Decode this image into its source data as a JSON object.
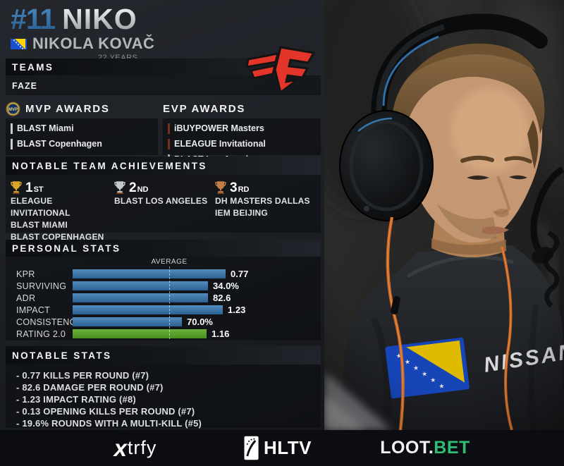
{
  "header": {
    "rank": "#11",
    "nickname": "NIKO",
    "realname": "NIKOLA KOVAČ",
    "age": "22 YEARS",
    "flag": "bosnia-flag"
  },
  "teams": {
    "title": "TEAMS",
    "team": "FAZE",
    "logo": "faze-logo"
  },
  "mvp_awards": {
    "title": "MVP AWARDS",
    "medal_text": "MVP",
    "items": [
      {
        "label": "BLAST Miami",
        "accent": "#c9ccd0"
      },
      {
        "label": "BLAST Copenhagen",
        "accent": "#c9ccd0"
      }
    ]
  },
  "evp_awards": {
    "title": "EVP AWARDS",
    "items": [
      {
        "label": "iBUYPOWER Masters",
        "accent": "#7d2d1d"
      },
      {
        "label": "ELEAGUE Invitational",
        "accent": "#7d2d1d"
      },
      {
        "label": "BLAST Los Angeles",
        "accent": "#a8adb2"
      }
    ]
  },
  "achievements": {
    "title": "NOTABLE TEAM ACHIEVEMENTS",
    "places": [
      {
        "place": "1",
        "suffix": "ST",
        "trophy_color": "#d9a62a",
        "events": [
          "ELEAGUE INVITATIONAL",
          "BLAST MIAMI",
          "BLAST COPENHAGEN"
        ]
      },
      {
        "place": "2",
        "suffix": "ND",
        "trophy_color": "#c3c8cd",
        "events": [
          "BLAST LOS ANGELES"
        ]
      },
      {
        "place": "3",
        "suffix": "RD",
        "trophy_color": "#c57d48",
        "events": [
          "DH MASTERS DALLAS",
          "IEM BEIJING"
        ]
      }
    ]
  },
  "chart_data": {
    "type": "bar",
    "orientation": "horizontal",
    "title": "PERSONAL STATS",
    "average_label": "AVERAGE",
    "average_frac": 0.489,
    "categories": [
      "KPR",
      "SURVIVING",
      "ADR",
      "IMPACT",
      "CONSISTENCY",
      "RATING 2.0"
    ],
    "values": [
      "0.77",
      "34.0%",
      "82.6",
      "1.23",
      "70.0%",
      "1.16"
    ],
    "values_numeric": [
      0.77,
      34.0,
      82.6,
      1.23,
      70.0,
      1.16
    ],
    "bar_fracs": [
      0.775,
      0.686,
      0.686,
      0.761,
      0.554,
      0.679
    ],
    "bar_colors": [
      [
        "#518cbc",
        "#2d6193"
      ],
      [
        "#518cbc",
        "#2d6193"
      ],
      [
        "#518cbc",
        "#2d6193"
      ],
      [
        "#518cbc",
        "#2d6193"
      ],
      [
        "#518cbc",
        "#2d6193"
      ],
      [
        "#6cb23a",
        "#47901f"
      ]
    ],
    "grid": "average-dashed-line",
    "legend": "none"
  },
  "notable_stats": {
    "title": "NOTABLE STATS",
    "items": [
      "- 0.77 KILLS PER ROUND (#7)",
      "- 82.6 DAMAGE PER ROUND (#7)",
      "- 1.23 IMPACT RATING (#8)",
      "- 0.13 OPENING KILLS PER ROUND (#7)",
      "- 19.6% ROUNDS WITH A MULTI-KILL (#5)"
    ]
  },
  "footer": {
    "xtrfy_x": "x",
    "xtrfy_rest": "trfy",
    "hltv": "HLTV",
    "loot_white": "LOOT.",
    "loot_green": "BET"
  },
  "photo": {
    "shirt_text": "NISSAN"
  },
  "colors": {
    "accent_blue": "#2f72ad",
    "bar_blue": "#3a76a8",
    "bar_green": "#57a32b",
    "lootbet_green": "#2fbe76",
    "faze_red": "#e4352b"
  }
}
